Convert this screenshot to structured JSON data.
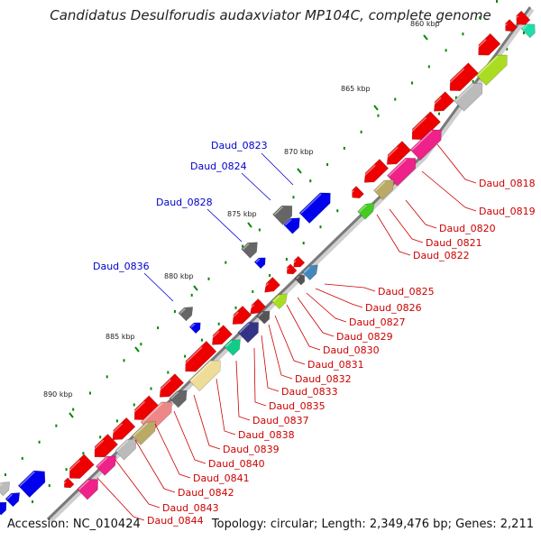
{
  "title": "Candidatus Desulforudis audaxviator MP104C, complete genome",
  "accession": "Accession: NC_010424",
  "stats": "Topology: circular; Length: 2,349,476 bp; Genes: 2,211",
  "ticks": [
    "860 kbp",
    "865 kbp",
    "870 kbp",
    "875 kbp",
    "880 kbp",
    "885 kbp",
    "890 kbp"
  ],
  "colors": {
    "backbone": "#808080",
    "forward_gene": "#0000ee",
    "reverse_gene": "#ee0000",
    "left_label": "#0000cc",
    "right_label": "#cc0000",
    "dot": "#008800"
  },
  "left_labels": [
    "Daud_0823",
    "Daud_0824",
    "Daud_0828",
    "Daud_0836"
  ],
  "right_labels": [
    "Daud_0818",
    "Daud_0819",
    "Daud_0820",
    "Daud_0821",
    "Daud_0822",
    "Daud_0825",
    "Daud_0826",
    "Daud_0827",
    "Daud_0829",
    "Daud_0830",
    "Daud_0831",
    "Daud_0832",
    "Daud_0833",
    "Daud_0835",
    "Daud_0837",
    "Daud_0838",
    "Daud_0839",
    "Daud_0840",
    "Daud_0841",
    "Daud_0842",
    "Daud_0843",
    "Daud_0844"
  ]
}
